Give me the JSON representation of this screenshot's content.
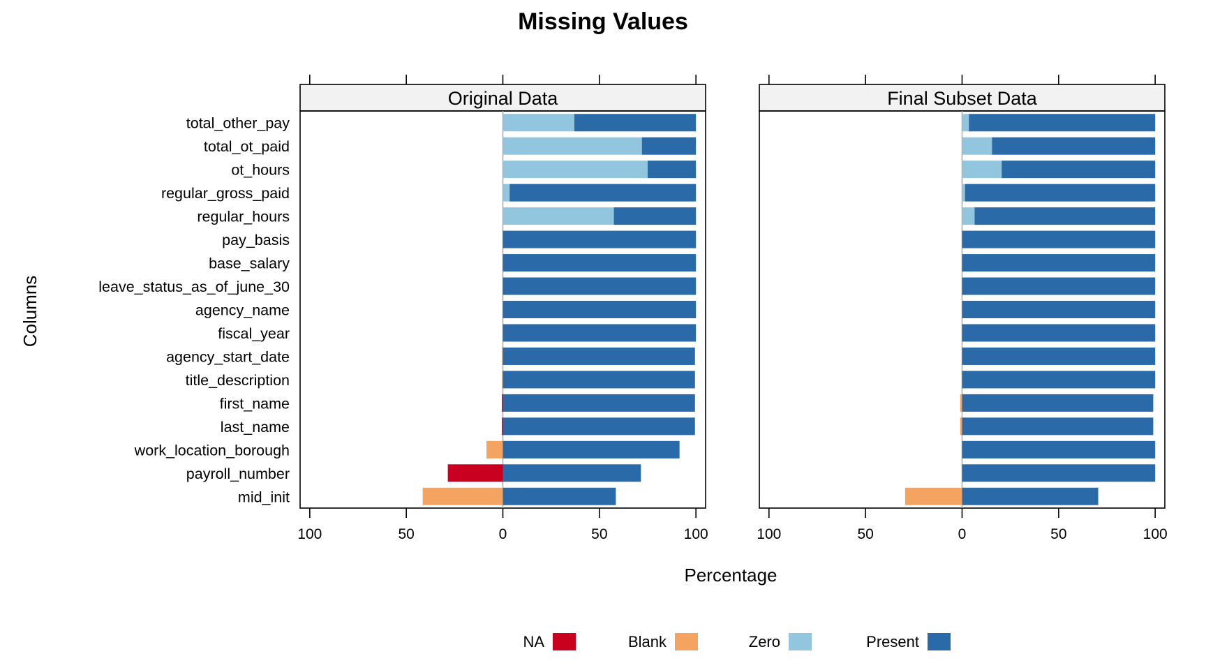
{
  "chart_data": {
    "type": "bar",
    "orientation": "horizontal",
    "stacked": "diverging",
    "title": "Missing Values",
    "xlabel": "Percentage",
    "ylabel": "Columns",
    "xlim": [
      -105,
      105
    ],
    "xticks": [
      {
        "value": -100,
        "label": "100"
      },
      {
        "value": -50,
        "label": "50"
      },
      {
        "value": 0,
        "label": "0"
      },
      {
        "value": 50,
        "label": "50"
      },
      {
        "value": 100,
        "label": "100"
      }
    ],
    "categories": [
      "total_other_pay",
      "total_ot_paid",
      "ot_hours",
      "regular_gross_paid",
      "regular_hours",
      "pay_basis",
      "base_salary",
      "leave_status_as_of_june_30",
      "agency_name",
      "fiscal_year",
      "agency_start_date",
      "title_description",
      "first_name",
      "last_name",
      "work_location_borough",
      "payroll_number",
      "mid_init"
    ],
    "legend": {
      "position": "bottom",
      "items": [
        {
          "label": "NA",
          "color": "#ca0020"
        },
        {
          "label": "Blank",
          "color": "#f4a460"
        },
        {
          "label": "Zero",
          "color": "#92c5de"
        },
        {
          "label": "Present",
          "color": "#2b6aa8"
        }
      ]
    },
    "panels": [
      {
        "title": "Original Data",
        "series": [
          {
            "name": "NA",
            "color": "#ca0020",
            "side": "negative",
            "values": [
              0,
              0,
              0,
              0,
              0,
              0,
              0,
              0,
              0,
              0,
              0,
              0,
              0.5,
              0.5,
              0,
              28.5,
              0
            ]
          },
          {
            "name": "Blank",
            "color": "#f4a460",
            "side": "negative",
            "values": [
              0,
              0,
              0,
              0,
              0,
              0,
              0,
              0,
              0,
              0,
              0.5,
              0.5,
              0,
              0,
              8.5,
              0,
              41.5
            ]
          },
          {
            "name": "Zero",
            "color": "#92c5de",
            "side": "positive",
            "values": [
              37,
              72,
              75,
              3.5,
              57.5,
              0,
              0,
              0,
              0,
              0,
              0,
              0,
              0,
              0,
              0,
              0,
              0
            ]
          },
          {
            "name": "Present",
            "color": "#2b6aa8",
            "side": "positive",
            "values": [
              63,
              28,
              25,
              96.5,
              42.5,
              100,
              100,
              100,
              100,
              100,
              99.5,
              99.5,
              99.5,
              99.5,
              91.5,
              71.5,
              58.5
            ]
          }
        ]
      },
      {
        "title": "Final Subset Data",
        "series": [
          {
            "name": "NA",
            "color": "#ca0020",
            "side": "negative",
            "values": [
              0,
              0,
              0,
              0,
              0,
              0,
              0,
              0,
              0,
              0,
              0,
              0,
              0,
              0,
              0,
              0,
              0
            ]
          },
          {
            "name": "Blank",
            "color": "#f4a460",
            "side": "negative",
            "values": [
              0,
              0,
              0,
              0,
              0,
              0,
              0,
              0,
              0,
              0,
              0,
              0,
              1,
              1,
              0,
              0,
              29.5
            ]
          },
          {
            "name": "Zero",
            "color": "#92c5de",
            "side": "positive",
            "values": [
              3.5,
              15.5,
              20.5,
              1.5,
              6.5,
              0,
              0,
              0,
              0,
              0,
              0,
              0,
              0,
              0,
              0,
              0,
              0
            ]
          },
          {
            "name": "Present",
            "color": "#2b6aa8",
            "side": "positive",
            "values": [
              96.5,
              84.5,
              79.5,
              98.5,
              93.5,
              100,
              100,
              100,
              100,
              100,
              100,
              100,
              99,
              99,
              100,
              100,
              70.5
            ]
          }
        ]
      }
    ]
  }
}
